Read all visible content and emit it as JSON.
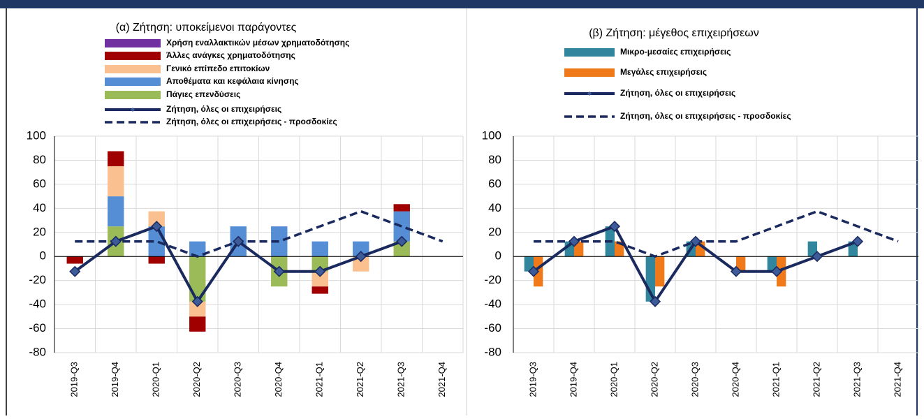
{
  "chart_data": [
    {
      "type": "stacked_bar",
      "title": "(α) Ζήτηση: υποκείμενοι παράγοντες",
      "categories": [
        "2019-Q3",
        "2019-Q4",
        "2020-Q1",
        "2020-Q2",
        "2020-Q3",
        "2020-Q4",
        "2021-Q1",
        "2021-Q2",
        "2021-Q3",
        "2021-Q4"
      ],
      "ylim": [
        -80,
        100
      ],
      "yticks": [
        -80,
        -60,
        -40,
        -20,
        0,
        20,
        40,
        60,
        80,
        100
      ],
      "grid": true,
      "series": [
        {
          "name": "Χρήση εναλλακτικών μέσων χρηματοδότησης",
          "kind": "bar",
          "color": "#7030a0",
          "values": [
            0,
            0,
            0,
            0,
            0,
            0,
            0,
            0,
            0,
            null
          ]
        },
        {
          "name": "Άλλες ανάγκες χρηματοδότησης",
          "kind": "bar",
          "color": "#a00000",
          "values": [
            -6,
            12.5,
            -6,
            -12.5,
            0,
            0,
            -6,
            0,
            6,
            null
          ]
        },
        {
          "name": "Γενικό επίπεδο επιτοκίων",
          "kind": "bar",
          "color": "#fac090",
          "values": [
            0,
            25,
            12.5,
            -12.5,
            0,
            0,
            -12.5,
            -12.5,
            0,
            null
          ]
        },
        {
          "name": "Αποθέματα και κεφάλαια κίνησης",
          "kind": "bar",
          "color": "#558ed5",
          "values": [
            0,
            25,
            25,
            12.5,
            25,
            25,
            12.5,
            12.5,
            25,
            null
          ]
        },
        {
          "name": "Πάγιες επενδύσεις",
          "kind": "bar",
          "color": "#9bbb59",
          "values": [
            0,
            25,
            0,
            -37.5,
            0,
            -25,
            -12.5,
            0,
            12.5,
            null
          ]
        },
        {
          "name": "Ζήτηση, όλες οι επιχειρήσεις",
          "kind": "line",
          "color": "#1a2a5e",
          "values": [
            -12.5,
            12.5,
            25,
            -37.5,
            12.5,
            -12.5,
            -12.5,
            0,
            12.5,
            null
          ]
        },
        {
          "name": "Ζήτηση, όλες οι επιχειρήσεις - προσδοκίες",
          "kind": "line",
          "dash": true,
          "color": "#1a2a5e",
          "values": [
            12.5,
            12.5,
            12.5,
            0,
            12.5,
            12.5,
            25,
            37.5,
            25,
            12.5
          ]
        }
      ]
    },
    {
      "type": "grouped_bar",
      "title": "(β) Ζήτηση: μέγεθος επιχειρήσεων",
      "categories": [
        "2019-Q3",
        "2019-Q4",
        "2020-Q1",
        "2020-Q2",
        "2020-Q3",
        "2020-Q4",
        "2021-Q1",
        "2021-Q2",
        "2021-Q3",
        "2021-Q4"
      ],
      "ylim": [
        -80,
        100
      ],
      "yticks": [
        -80,
        -60,
        -40,
        -20,
        0,
        20,
        40,
        60,
        80,
        100
      ],
      "grid": true,
      "series": [
        {
          "name": "Μικρο-μεσαίες επιχειρήσεις",
          "kind": "bar",
          "color": "#31859c",
          "values": [
            -12.5,
            12.5,
            25,
            -37.5,
            12.5,
            0,
            -12.5,
            12.5,
            12.5,
            null
          ]
        },
        {
          "name": "Μεγάλες επιχειρήσεις",
          "kind": "bar",
          "color": "#f07a1a",
          "values": [
            -25,
            12.5,
            12.5,
            -25,
            12.5,
            -12.5,
            -25,
            0,
            0,
            null
          ]
        },
        {
          "name": "Ζήτηση, όλες οι επιχειρήσεις",
          "kind": "line",
          "color": "#1a2a5e",
          "values": [
            -12.5,
            12.5,
            25,
            -37.5,
            12.5,
            -12.5,
            -12.5,
            0,
            12.5,
            null
          ]
        },
        {
          "name": "Ζήτηση, όλες οι επιχειρήσεις - προσδοκίες",
          "kind": "line",
          "dash": true,
          "color": "#1a2a5e",
          "values": [
            12.5,
            12.5,
            12.5,
            0,
            12.5,
            12.5,
            25,
            37.5,
            25,
            12.5
          ]
        }
      ]
    }
  ]
}
